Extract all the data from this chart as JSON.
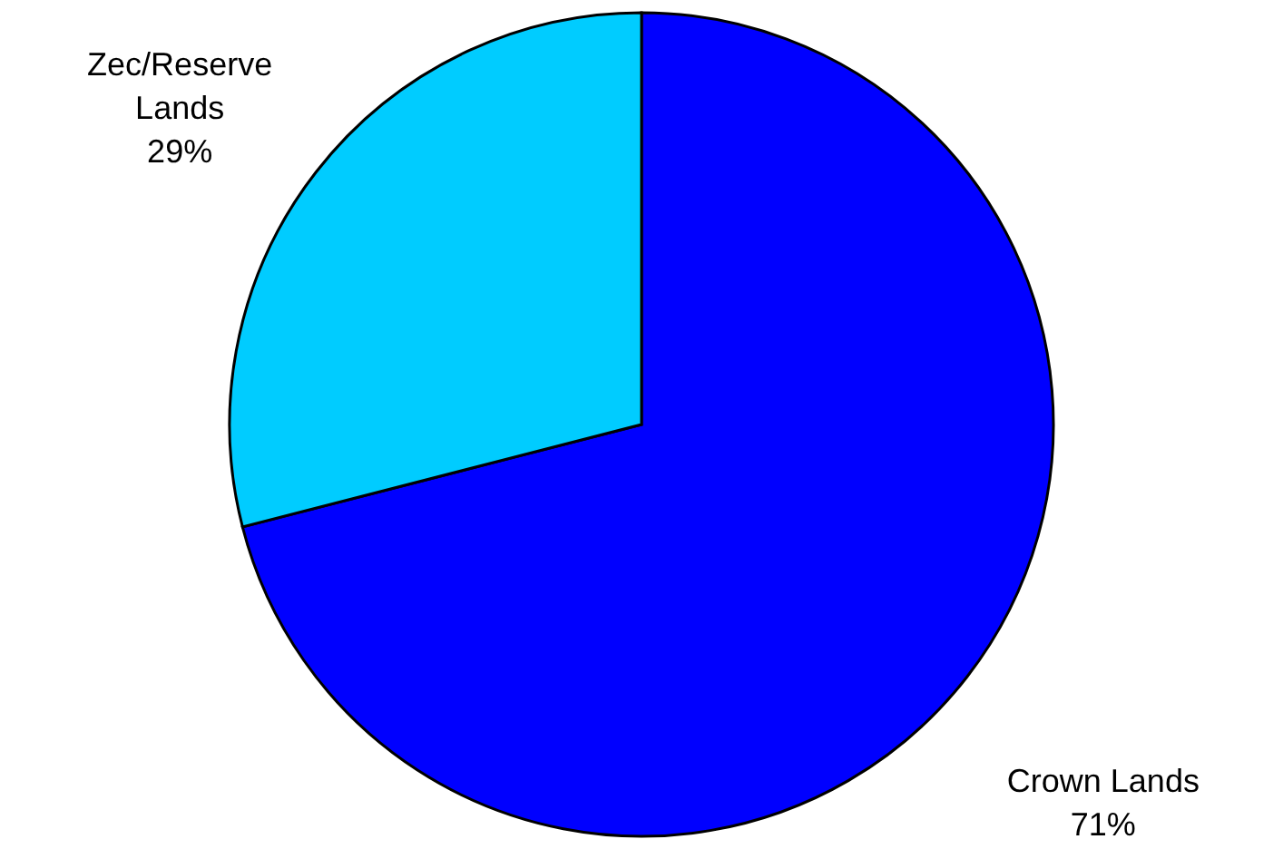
{
  "chart_data": {
    "type": "pie",
    "categories": [
      "Crown Lands",
      "Zec/Reserve Lands"
    ],
    "values": [
      71,
      29
    ],
    "value_labels": [
      "71%",
      "29%"
    ],
    "colors": [
      "#0000ff",
      "#00ccff"
    ]
  }
}
